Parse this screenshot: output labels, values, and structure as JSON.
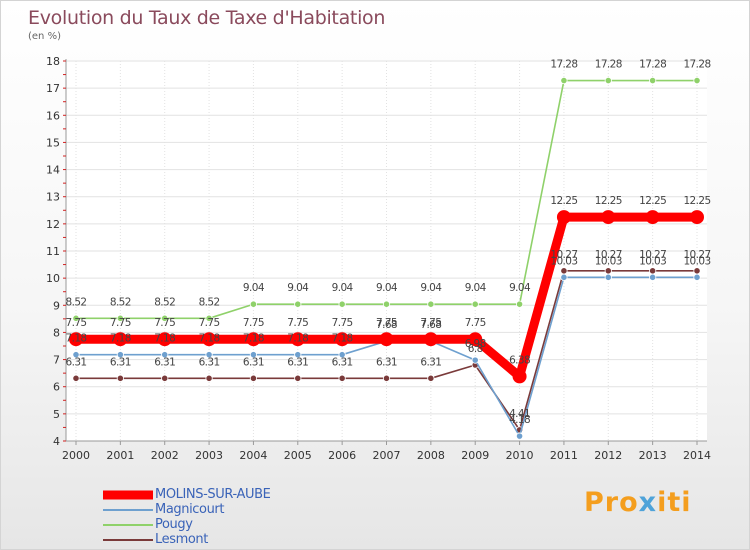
{
  "chart_data": {
    "type": "line",
    "title": "Evolution du Taux de Taxe d'Habitation",
    "subtitle": "(en %)",
    "x": [
      "2000",
      "2001",
      "2002",
      "2003",
      "2004",
      "2005",
      "2006",
      "2007",
      "2008",
      "2009",
      "2010",
      "2011",
      "2012",
      "2013",
      "2014"
    ],
    "ylim": [
      4,
      18
    ],
    "yticks": [
      4,
      5,
      6,
      7,
      8,
      9,
      10,
      11,
      12,
      13,
      14,
      15,
      16,
      17,
      18
    ],
    "grid": true,
    "legend_position": "bottom-left",
    "series": [
      {
        "name": "MOLINS-SUR-AUBE",
        "color": "#ff0000",
        "values": [
          7.75,
          7.75,
          7.75,
          7.75,
          7.75,
          7.75,
          7.75,
          7.75,
          7.75,
          7.75,
          6.38,
          12.25,
          12.25,
          12.25,
          12.25
        ],
        "labels": [
          "7.75",
          "7.75",
          "7.75",
          "7.75",
          "7.75",
          "7.75",
          "7.75",
          "7.75",
          "7.75",
          "7.75",
          "6.38",
          "12.25",
          "12.25",
          "12.25",
          "12.25"
        ]
      },
      {
        "name": "Magnicourt",
        "color": "#6ea0cf",
        "values": [
          7.18,
          7.18,
          7.18,
          7.18,
          7.18,
          7.18,
          7.18,
          7.68,
          7.68,
          6.98,
          4.18,
          10.03,
          10.03,
          10.03,
          10.03
        ],
        "labels": [
          "7.18",
          "7.18",
          "7.18",
          "7.18",
          "7.18",
          "7.18",
          "7.18",
          "7.68",
          "7.68",
          "6.98",
          "4.18",
          "10.03",
          "10.03",
          "10.03",
          "10.03"
        ]
      },
      {
        "name": "Pougy",
        "color": "#8fd16a",
        "values": [
          8.52,
          8.52,
          8.52,
          8.52,
          9.04,
          9.04,
          9.04,
          9.04,
          9.04,
          9.04,
          9.04,
          17.28,
          17.28,
          17.28,
          17.28
        ],
        "labels": [
          "8.52",
          "8.52",
          "8.52",
          "8.52",
          "9.04",
          "9.04",
          "9.04",
          "9.04",
          "9.04",
          "9.04",
          "9.04",
          "17.28",
          "17.28",
          "17.28",
          "17.28"
        ]
      },
      {
        "name": "Lesmont",
        "color": "#7a3a3a",
        "values": [
          6.31,
          6.31,
          6.31,
          6.31,
          6.31,
          6.31,
          6.31,
          6.31,
          6.31,
          6.8,
          4.41,
          10.27,
          10.27,
          10.27,
          10.27
        ],
        "labels": [
          "6.31",
          "6.31",
          "6.31",
          "6.31",
          "6.31",
          "6.31",
          "6.31",
          "6.31",
          "6.31",
          "6.8",
          "4.41",
          "10.27",
          "10.27",
          "10.27",
          "10.27"
        ]
      }
    ]
  },
  "brand": {
    "part1": "Pro",
    "part2": "x",
    "part3": "iti"
  }
}
